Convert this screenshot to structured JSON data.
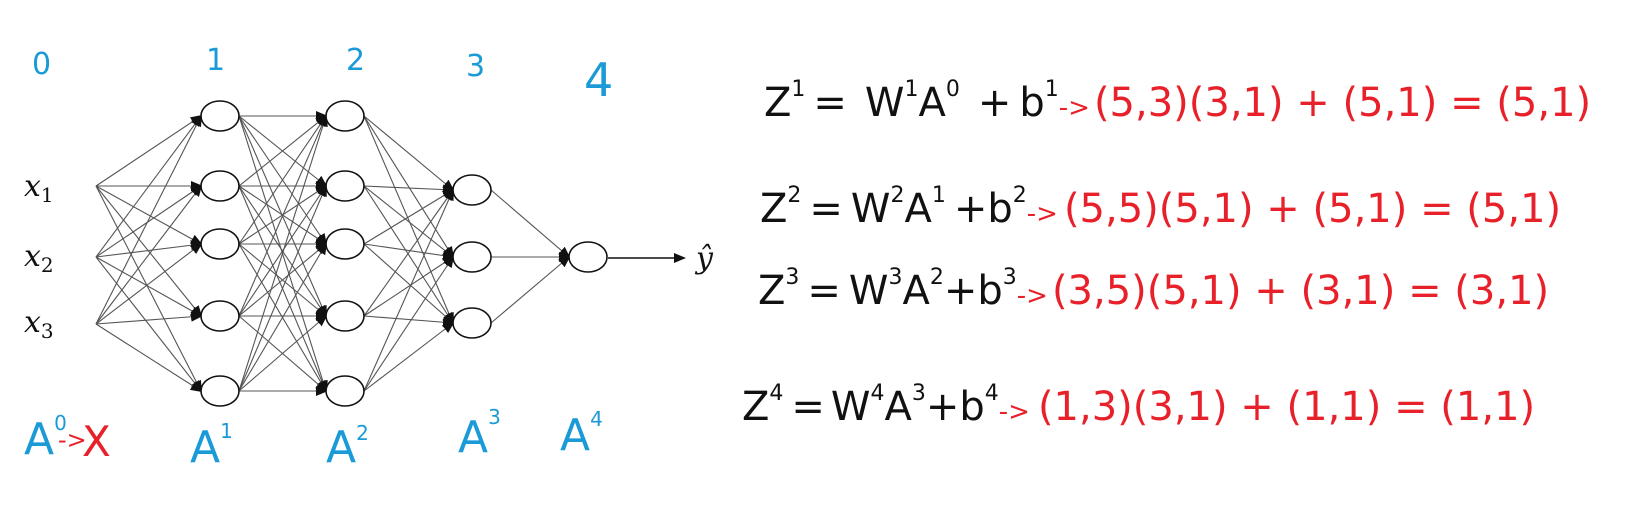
{
  "colors": {
    "layer_labels": "#1a9ad6",
    "shapes": "#e8202a",
    "equations": "#111111",
    "network": "#111111"
  },
  "network": {
    "layer_numbers": [
      "0",
      "1",
      "2",
      "3",
      "4"
    ],
    "inputs": [
      "x",
      "x",
      "x"
    ],
    "input_subscripts": [
      "1",
      "2",
      "3"
    ],
    "layer_sizes": [
      3,
      5,
      5,
      3,
      1
    ],
    "output_label": "ŷ",
    "activation_labels": [
      {
        "base": "A",
        "sup": "0"
      },
      {
        "base": "A",
        "sup": "1"
      },
      {
        "base": "A",
        "sup": "2"
      },
      {
        "base": "A",
        "sup": "3"
      },
      {
        "base": "A",
        "sup": "4"
      }
    ],
    "a0_arrow": "->",
    "a0_target": "X"
  },
  "equations": [
    {
      "lhs": "Z",
      "lhs_sup": "1",
      "eq": "=",
      "w": "W",
      "w_sup": "1",
      "a": "A",
      "a_sup": "0",
      "plus": "+",
      "b": "b",
      "b_sup": "1",
      "arrow": "->",
      "shapes": "(5,3)(3,1) + (5,1) = (5,1)"
    },
    {
      "lhs": "Z",
      "lhs_sup": "2",
      "eq": "=",
      "w": "W",
      "w_sup": "2",
      "a": "A",
      "a_sup": "1",
      "plus": "+",
      "b": "b",
      "b_sup": "2",
      "arrow": "->",
      "shapes": "(5,5)(5,1) + (5,1) = (5,1)"
    },
    {
      "lhs": "Z",
      "lhs_sup": "3",
      "eq": "=",
      "w": "W",
      "w_sup": "3",
      "a": "A",
      "a_sup": "2",
      "plus": "+",
      "b": "b",
      "b_sup": "3",
      "arrow": "->",
      "shapes": "(3,5)(5,1) + (3,1) = (3,1)"
    },
    {
      "lhs": "Z",
      "lhs_sup": "4",
      "eq": "=",
      "w": "W",
      "w_sup": "4",
      "a": "A",
      "a_sup": "3",
      "plus": "+",
      "b": "b",
      "b_sup": "4",
      "arrow": "->",
      "shapes": "(1,3)(3,1) + (1,1) = (1,1)"
    }
  ]
}
